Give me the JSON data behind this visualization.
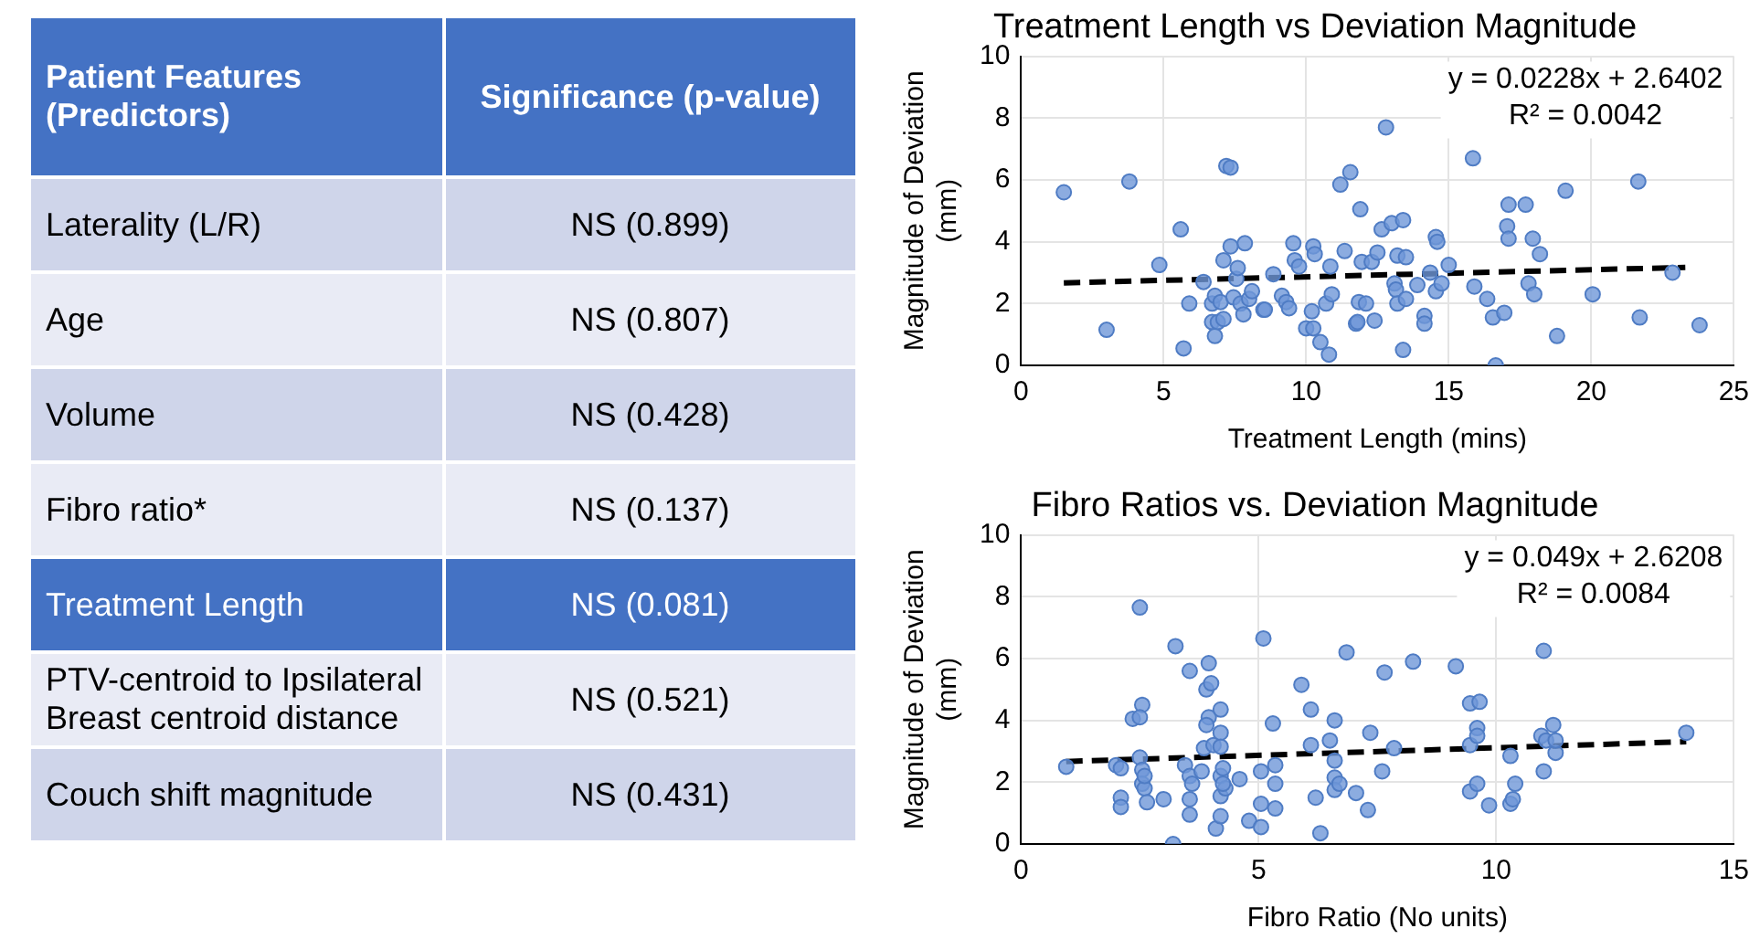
{
  "chart_data": [
    {
      "type": "other",
      "colors": [
        "#4472c4",
        "#cfd5ea",
        "#e9ebf5",
        "#cfd5ea",
        "#e9ebf5",
        "#4472c4",
        "#e9ebf5",
        "#cfd5ea"
      ],
      "annotations": [
        "Patient Features (Predictors)",
        "Significance (p-value)",
        "Laterality (L/R)",
        "NS (0.899)",
        "Age",
        "NS (0.807)",
        "Volume",
        "NS (0.428)",
        "Fibro ratio*",
        "NS (0.137)",
        "Treatment Length",
        "NS (0.081)",
        "PTV-centroid to Ipsilateral Breast centroid distance",
        "NS (0.521)",
        "Couch shift magnitude",
        "NS (0.431)"
      ]
    },
    {
      "type": "scatter",
      "title": "Treatment Length vs Deviation Magnitude",
      "xlabel": "Treatment Length (mins)",
      "ylabel": "Magnitude of Deviation (mm)",
      "xlim": [
        0,
        25
      ],
      "xticks": [
        0,
        5,
        10,
        15,
        20,
        25
      ],
      "ylim": [
        0,
        10
      ],
      "yticks": [
        0,
        2,
        4,
        6,
        8,
        10
      ],
      "grid": true,
      "legend": false,
      "marker": "circle",
      "annotations": [
        "y = 0.0228x + 2.6402",
        "R² = 0.0042"
      ],
      "series": [
        {
          "type": "scatter",
          "color": "#6f97d8",
          "x": [
            1.5,
            3.0,
            3.8,
            4.85,
            5.6,
            5.7,
            5.9,
            6.4,
            6.7,
            6.8,
            6.7,
            6.8,
            6.9,
            7.0,
            7.1,
            7.1,
            7.2,
            7.35,
            7.35,
            7.45,
            7.55,
            7.6,
            7.7,
            7.8,
            7.85,
            8.0,
            8.1,
            8.5,
            8.55,
            8.85,
            9.15,
            9.3,
            9.4,
            9.55,
            9.6,
            9.75,
            10.0,
            10.2,
            10.25,
            10.25,
            10.3,
            10.5,
            10.7,
            10.8,
            10.85,
            10.9,
            11.2,
            11.35,
            11.55,
            11.75,
            11.8,
            11.85,
            11.9,
            11.95,
            12.1,
            12.3,
            12.4,
            12.5,
            12.65,
            12.8,
            13.0,
            13.1,
            13.15,
            13.2,
            13.2,
            13.4,
            13.4,
            13.5,
            13.5,
            13.9,
            14.15,
            14.15,
            14.35,
            14.55,
            14.55,
            14.6,
            14.75,
            15.0,
            15.85,
            15.9,
            16.35,
            16.55,
            16.65,
            16.95,
            17.1,
            17.05,
            17.1,
            17.7,
            17.8,
            17.95,
            18.0,
            18.2,
            18.8,
            19.1,
            20.05,
            21.65,
            21.7,
            22.85,
            23.8
          ],
          "values": [
            5.6,
            1.15,
            5.95,
            3.25,
            4.4,
            0.55,
            2.0,
            2.7,
            2.0,
            2.25,
            1.4,
            0.95,
            1.4,
            2.05,
            3.4,
            1.5,
            6.45,
            6.4,
            3.85,
            2.2,
            2.8,
            3.15,
            2.0,
            1.65,
            3.95,
            2.15,
            2.4,
            1.8,
            1.8,
            2.95,
            2.25,
            2.05,
            1.85,
            3.95,
            3.4,
            3.2,
            1.2,
            1.75,
            1.2,
            3.85,
            3.6,
            0.75,
            2.0,
            0.35,
            3.2,
            2.3,
            5.85,
            3.7,
            6.25,
            1.35,
            1.4,
            2.05,
            5.05,
            3.35,
            2.0,
            3.35,
            1.45,
            3.65,
            4.4,
            7.7,
            4.6,
            2.65,
            2.45,
            3.55,
            2.0,
            0.5,
            4.7,
            3.5,
            2.15,
            2.6,
            1.6,
            1.35,
            3.0,
            2.4,
            4.15,
            4.0,
            2.65,
            3.25,
            6.7,
            2.55,
            2.15,
            1.55,
            0.0,
            1.7,
            5.2,
            4.5,
            4.1,
            5.2,
            2.65,
            4.1,
            2.3,
            3.6,
            0.95,
            5.65,
            2.3,
            5.95,
            1.55,
            3.0,
            1.3
          ]
        },
        {
          "type": "line",
          "color": "#000000",
          "line_style": "dashed",
          "marker": "none",
          "x": [
            1.5,
            23.3
          ],
          "values": [
            2.67,
            3.17
          ]
        }
      ]
    },
    {
      "type": "scatter",
      "title": "Fibro Ratios vs. Deviation Magnitude",
      "xlabel": "Fibro Ratio (No units)",
      "ylabel": "Magnitude of Deviation (mm)",
      "xlim": [
        0,
        15
      ],
      "xticks": [
        0,
        5,
        10,
        15
      ],
      "ylim": [
        0,
        10
      ],
      "yticks": [
        0,
        2,
        4,
        6,
        8,
        10
      ],
      "grid": true,
      "legend": false,
      "marker": "circle",
      "annotations": [
        "y = 0.049x + 2.6208",
        "R² = 0.0084"
      ],
      "series": [
        {
          "type": "scatter",
          "color": "#6f97d8",
          "x": [
            0.95,
            2.0,
            2.1,
            2.1,
            2.1,
            2.35,
            2.5,
            2.55,
            2.5,
            2.5,
            2.55,
            2.55,
            2.6,
            2.6,
            2.65,
            3.0,
            3.2,
            3.25,
            3.45,
            3.55,
            3.55,
            3.55,
            3.55,
            3.6,
            3.8,
            3.85,
            3.9,
            3.95,
            3.95,
            3.9,
            4.0,
            4.05,
            4.1,
            4.2,
            4.2,
            4.2,
            4.2,
            4.2,
            4.2,
            4.25,
            4.3,
            4.25,
            4.6,
            4.8,
            5.05,
            5.05,
            5.05,
            5.1,
            5.3,
            5.35,
            5.35,
            5.35,
            5.9,
            6.1,
            6.1,
            6.2,
            6.3,
            6.5,
            6.6,
            6.6,
            6.6,
            6.6,
            6.7,
            6.85,
            7.05,
            7.3,
            7.35,
            7.6,
            7.65,
            7.85,
            8.25,
            9.15,
            9.45,
            9.45,
            9.45,
            9.65,
            9.6,
            9.6,
            9.6,
            9.85,
            10.3,
            10.3,
            10.35,
            10.4,
            11.0,
            10.95,
            11.0,
            11.05,
            11.2,
            11.25,
            11.25,
            14.0
          ],
          "values": [
            2.5,
            2.55,
            2.45,
            1.5,
            1.2,
            4.05,
            7.65,
            4.5,
            4.1,
            2.8,
            2.4,
            1.95,
            1.8,
            2.2,
            1.35,
            1.45,
            0.0,
            6.4,
            2.55,
            5.6,
            2.2,
            1.45,
            0.95,
            1.95,
            2.35,
            3.1,
            5.0,
            5.85,
            4.1,
            3.85,
            5.2,
            3.2,
            0.5,
            4.35,
            3.6,
            2.2,
            1.55,
            0.9,
            3.15,
            2.45,
            1.8,
            1.95,
            2.1,
            0.75,
            2.35,
            1.3,
            0.55,
            6.65,
            3.9,
            2.55,
            1.95,
            1.15,
            5.15,
            4.35,
            3.2,
            1.5,
            0.35,
            3.35,
            4.0,
            2.7,
            2.15,
            1.75,
            1.95,
            6.2,
            1.65,
            1.1,
            3.6,
            2.35,
            5.55,
            3.1,
            5.9,
            5.75,
            4.55,
            3.2,
            1.7,
            4.6,
            3.75,
            3.5,
            1.95,
            1.25,
            2.85,
            1.3,
            1.45,
            1.95,
            6.25,
            3.5,
            2.35,
            3.35,
            3.85,
            2.95,
            3.35,
            3.6
          ]
        },
        {
          "type": "line",
          "color": "#000000",
          "line_style": "dashed",
          "marker": "none",
          "x": [
            0.95,
            14
          ],
          "values": [
            2.67,
            3.31
          ]
        }
      ]
    }
  ]
}
